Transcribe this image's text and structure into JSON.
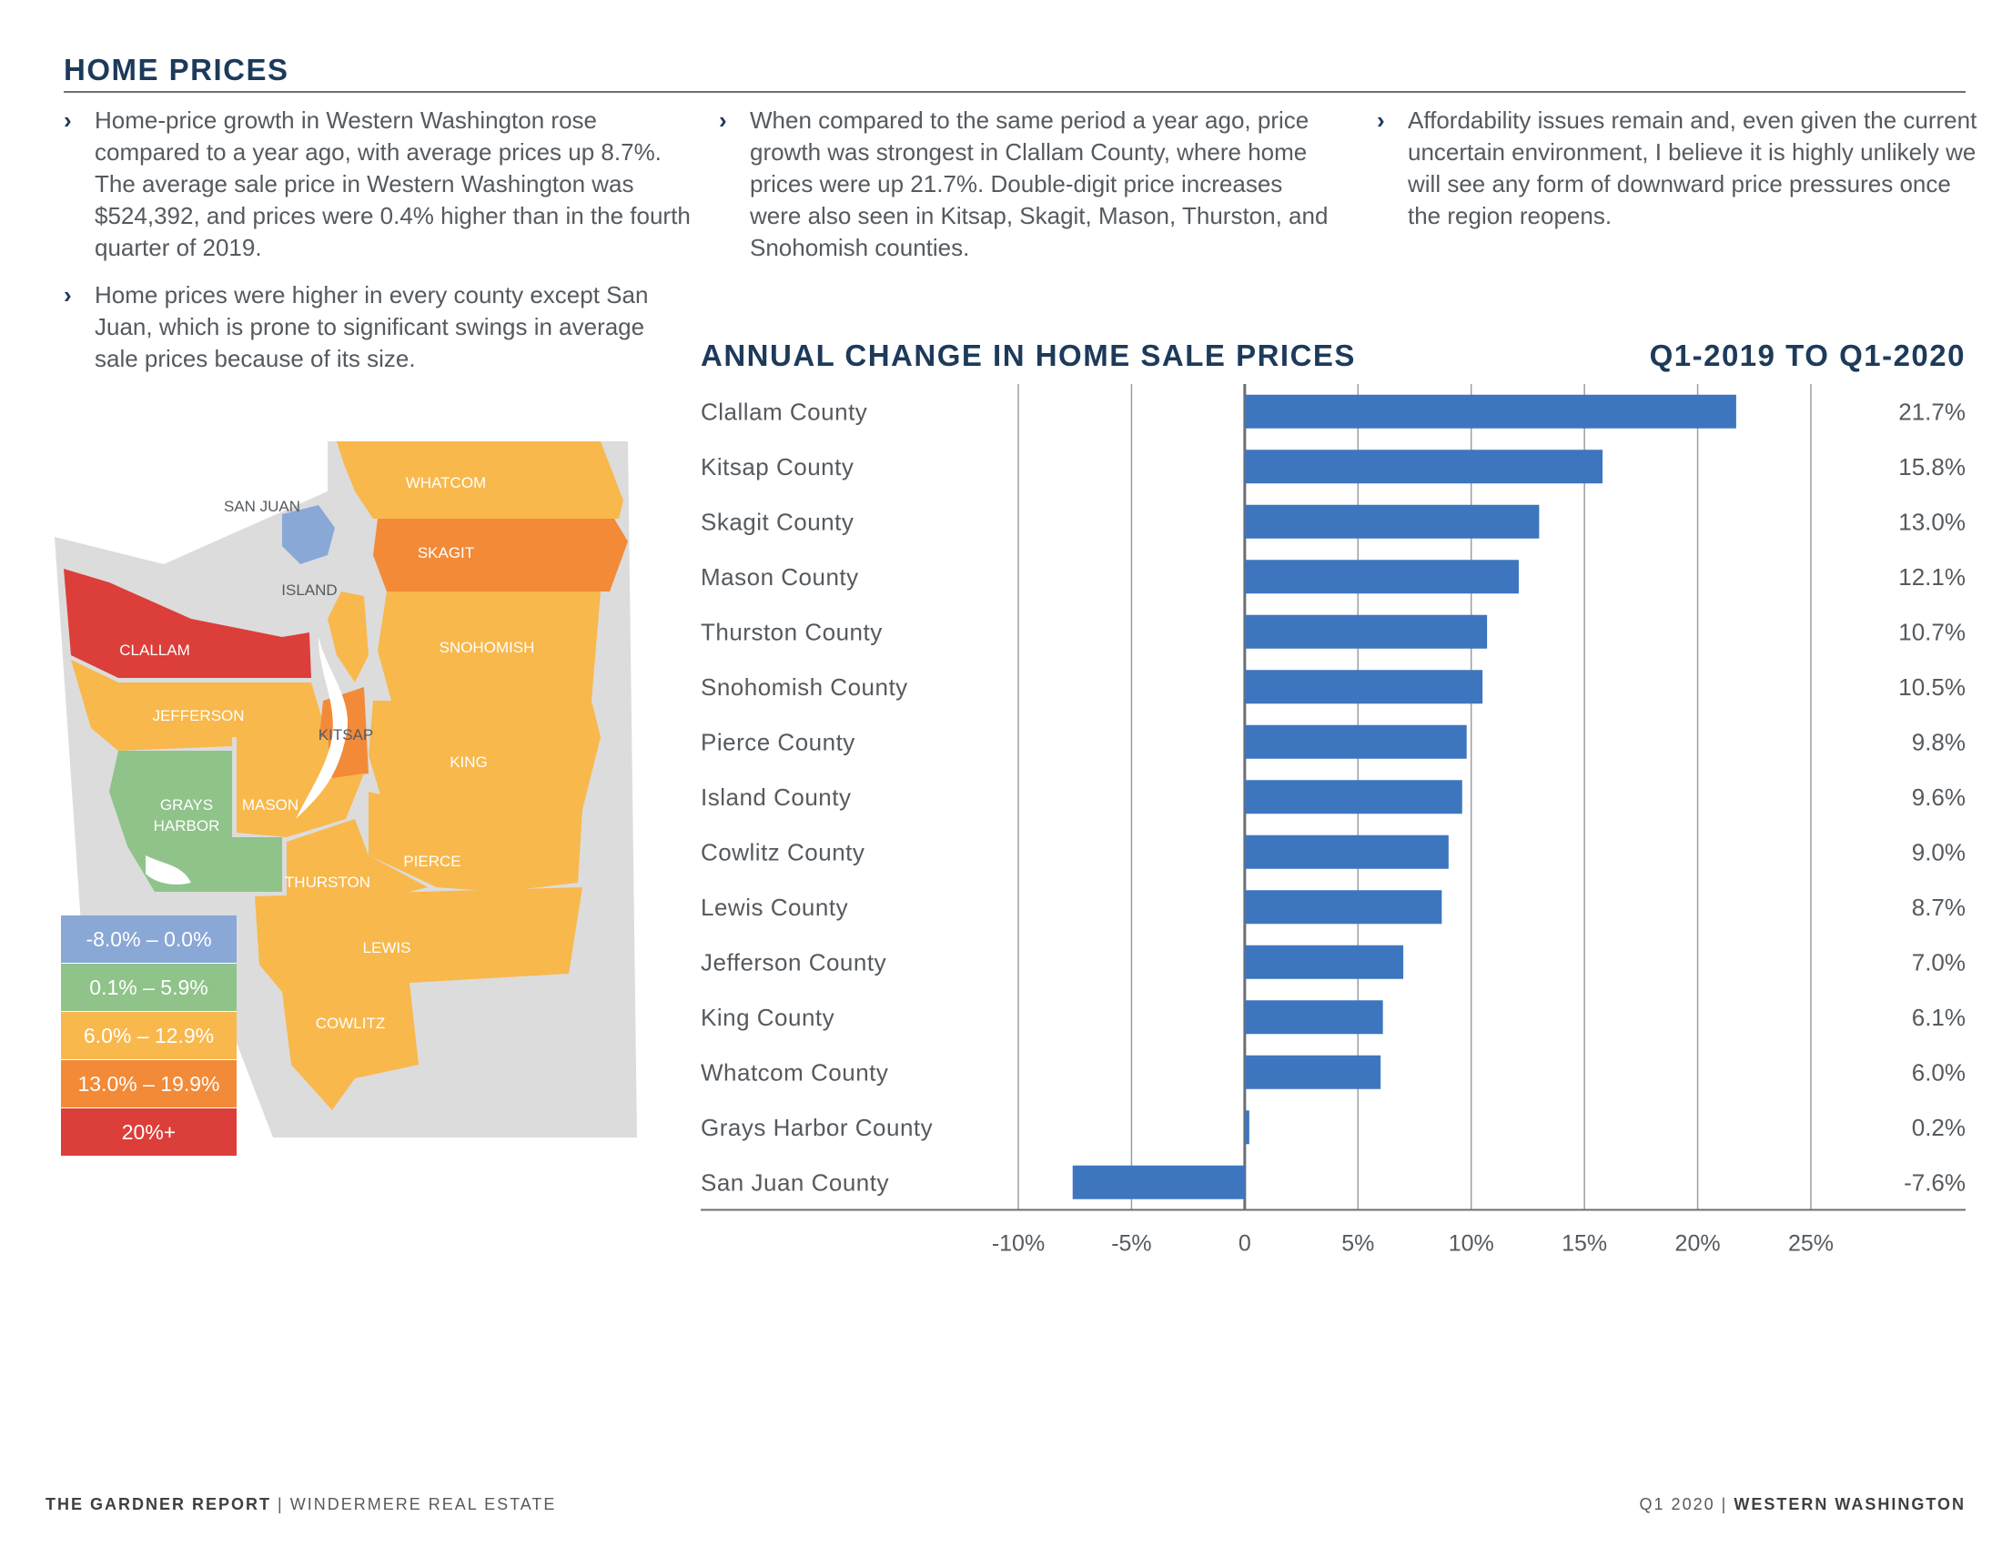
{
  "page": {
    "section_title": "HOME PRICES",
    "bullet_marker": "›",
    "bullets": [
      "Home-price growth in Western Washington rose compared to a year ago, with average prices up 8.7%. The average sale price in Western Washington was $524,392, and prices were 0.4% higher than in the fourth quarter of 2019.",
      "Home prices were higher in every county except San Juan, which is prone to significant swings in average sale prices because of its size.",
      "When compared to the same period a year ago, price growth was strongest in Clallam County, where home prices were up 21.7%. Double-digit price increases were also seen in Kitsap, Skagit, Mason, Thurston, and Snohomish counties.",
      "Affordability issues remain and, even given the current uncertain environment, I believe it is highly unlikely we will see any form of downward price pressures once the region reopens."
    ]
  },
  "map": {
    "labels": [
      "WHATCOM",
      "SAN JUAN",
      "SKAGIT",
      "ISLAND",
      "CLALLAM",
      "SNOHOMISH",
      "JEFFERSON",
      "KITSAP",
      "KING",
      "GRAYS",
      "HARBOR",
      "MASON",
      "PIERCE",
      "THURSTON",
      "LEWIS",
      "COWLITZ"
    ],
    "legend": [
      {
        "label": "-8.0% – 0.0%",
        "color": "#8aa8d6"
      },
      {
        "label": "0.1% – 5.9%",
        "color": "#8fc38a"
      },
      {
        "label": "6.0% – 12.9%",
        "color": "#f8b84c"
      },
      {
        "label": "13.0% – 19.9%",
        "color": "#f28a38"
      },
      {
        "label": "20%+",
        "color": "#dc3e39"
      }
    ]
  },
  "chart_data": {
    "type": "bar",
    "orientation": "horizontal",
    "title": "ANNUAL CHANGE IN HOME SALE PRICES",
    "subtitle": "Q1-2019 TO Q1-2020",
    "categories": [
      "Clallam County",
      "Kitsap County",
      "Skagit County",
      "Mason County",
      "Thurston County",
      "Snohomish County",
      "Pierce County",
      "Island County",
      "Cowlitz County",
      "Lewis County",
      "Jefferson County",
      "King County",
      "Whatcom County",
      "Grays Harbor County",
      "San Juan County"
    ],
    "values": [
      21.7,
      15.8,
      13.0,
      12.1,
      10.7,
      10.5,
      9.8,
      9.6,
      9.0,
      8.7,
      7.0,
      6.1,
      6.0,
      0.2,
      -7.6
    ],
    "value_labels": [
      "21.7%",
      "15.8%",
      "13.0%",
      "12.1%",
      "10.7%",
      "10.5%",
      "9.8%",
      "9.6%",
      "9.0%",
      "8.7%",
      "7.0%",
      "6.1%",
      "6.0%",
      "0.2%",
      "-7.6%"
    ],
    "xlim": [
      -10,
      25
    ],
    "xticks": [
      -10,
      -5,
      0,
      5,
      10,
      15,
      20,
      25
    ],
    "xtick_labels": [
      "-10%",
      "-5%",
      "0",
      "5%",
      "10%",
      "15%",
      "20%",
      "25%"
    ],
    "grid": true,
    "bar_color": "#3d76be"
  },
  "footer": {
    "left_bold": "THE GARDNER REPORT",
    "left_sep": "|",
    "left_rest": "WINDERMERE REAL ESTATE",
    "right_plain": "Q1 2020",
    "right_sep": "|",
    "right_bold": "WESTERN WASHINGTON"
  }
}
